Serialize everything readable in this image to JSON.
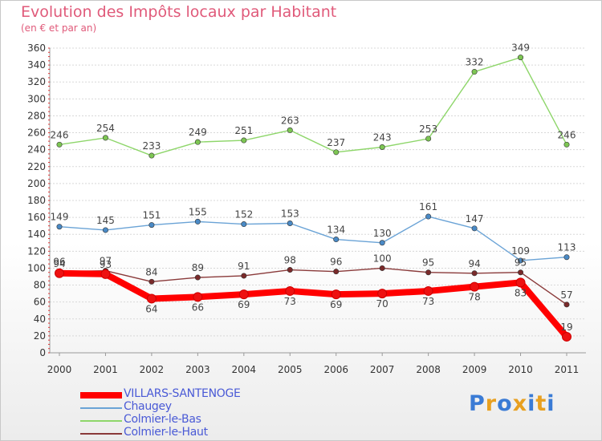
{
  "title": "Evolution des Impôts locaux par Habitant",
  "subtitle": "(en € et par an)",
  "logo": {
    "text": "Proxiti",
    "letter_colors": [
      "#3a7bd5",
      "#e8a020",
      "#3a7bd5",
      "#e8a020",
      "#3a7bd5",
      "#e8a020",
      "#3a7bd5"
    ]
  },
  "chart_data": {
    "type": "line",
    "title": "Evolution des Impôts locaux par Habitant",
    "subtitle": "(en € et par an)",
    "xlabel": "",
    "ylabel": "",
    "x": [
      "2000",
      "2001",
      "2002",
      "2003",
      "2004",
      "2005",
      "2006",
      "2007",
      "2008",
      "2009",
      "2010",
      "2011"
    ],
    "ylim": [
      0,
      360
    ],
    "yticks": [
      "0",
      "20",
      "40",
      "60",
      "80",
      "100",
      "120",
      "140",
      "160",
      "180",
      "200",
      "220",
      "240",
      "260",
      "280",
      "300",
      "320",
      "340",
      "360"
    ],
    "grid": "horizontal",
    "legend_position": "bottom-left",
    "series": [
      {
        "name": "Colmier-le-Bas",
        "color": "#8ed66a",
        "marker": "#7dc653",
        "emphasis": "normal",
        "values": [
          246,
          254,
          233,
          249,
          251,
          263,
          237,
          243,
          253,
          332,
          349,
          246
        ],
        "labels": [
          "246",
          "254",
          "233",
          "249",
          "251",
          "263",
          "237",
          "243",
          "253",
          "332",
          "349",
          "246"
        ]
      },
      {
        "name": "Chaugey",
        "color": "#6aa3d6",
        "marker": "#4a8ac6",
        "emphasis": "normal",
        "values": [
          149,
          145,
          151,
          155,
          152,
          153,
          134,
          130,
          161,
          147,
          109,
          113
        ],
        "labels": [
          "149",
          "145",
          "151",
          "155",
          "152",
          "153",
          "134",
          "130",
          "161",
          "147",
          "109",
          "113"
        ]
      },
      {
        "name": "Colmier-le-Haut",
        "color": "#8a3a3a",
        "marker": "#7a2a2a",
        "emphasis": "normal",
        "values": [
          96,
          97,
          84,
          89,
          91,
          98,
          96,
          100,
          95,
          94,
          95,
          57
        ],
        "labels": [
          "96",
          "97",
          "84",
          "89",
          "91",
          "98",
          "96",
          "100",
          "95",
          "94",
          "95",
          "57"
        ]
      },
      {
        "name": "VILLARS-SANTENOGE",
        "color": "#ff0000",
        "marker": "#ee1111",
        "emphasis": "bold",
        "values": [
          94,
          93,
          64,
          66,
          69,
          73,
          69,
          70,
          73,
          78,
          83,
          19
        ],
        "labels": [
          "94",
          "93",
          "64",
          "66",
          "69",
          "73",
          "69",
          "70",
          "73",
          "78",
          "83",
          "19"
        ]
      }
    ],
    "legend_order": [
      "VILLARS-SANTENOGE",
      "Chaugey",
      "Colmier-le-Bas",
      "Colmier-le-Haut"
    ]
  }
}
